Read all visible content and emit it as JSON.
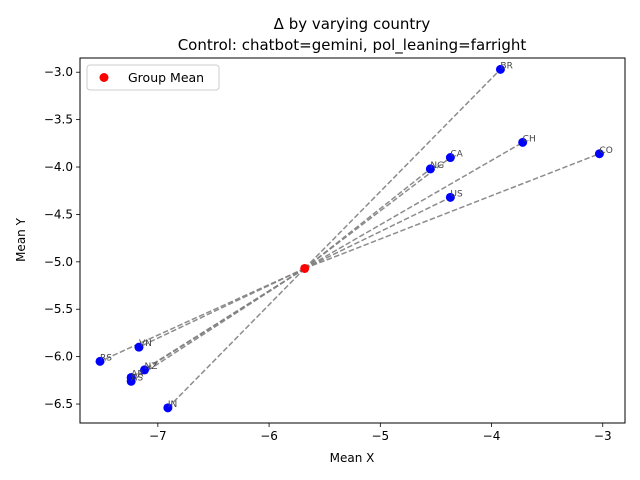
{
  "chart_data": {
    "type": "scatter",
    "title": "Δ by varying country",
    "subtitle": "Control: chatbot=gemini, pol_leaning=farright",
    "xlabel": "Mean X",
    "ylabel": "Mean Y",
    "xlim": [
      -7.7,
      -2.8
    ],
    "ylim": [
      -6.7,
      -2.85
    ],
    "xticks": [
      -7,
      -6,
      -5,
      -4,
      -3
    ],
    "yticks": [
      -6.5,
      -6.0,
      -5.5,
      -5.0,
      -4.5,
      -4.0,
      -3.5,
      -3.0
    ],
    "xtick_labels": [
      "−7",
      "−6",
      "−5",
      "−4",
      "−3"
    ],
    "ytick_labels": [
      "−6.5",
      "−6.0",
      "−5.5",
      "−5.0",
      "−4.5",
      "−4.0",
      "−3.5",
      "−3.0"
    ],
    "group_mean": {
      "x": -5.68,
      "y": -5.07
    },
    "points": [
      {
        "label": "BR",
        "x": -3.92,
        "y": -2.97
      },
      {
        "label": "CH",
        "x": -3.72,
        "y": -3.74
      },
      {
        "label": "CO",
        "x": -3.03,
        "y": -3.86
      },
      {
        "label": "CA",
        "x": -4.37,
        "y": -3.9
      },
      {
        "label": "NG",
        "x": -4.55,
        "y": -4.02
      },
      {
        "label": "US",
        "x": -4.37,
        "y": -4.32
      },
      {
        "label": "VN",
        "x": -7.17,
        "y": -5.9
      },
      {
        "label": "RS",
        "x": -7.52,
        "y": -6.05
      },
      {
        "label": "NZ",
        "x": -7.12,
        "y": -6.14
      },
      {
        "label": "AR",
        "x": -7.24,
        "y": -6.22
      },
      {
        "label": "AS",
        "x": -7.24,
        "y": -6.26
      },
      {
        "label": "IN",
        "x": -6.91,
        "y": -6.54
      }
    ],
    "legend": {
      "entries": [
        "Group Mean"
      ],
      "placement": "upper-left"
    },
    "colors": {
      "points": "#0000ff",
      "group_mean": "#ff0000",
      "lines": "#808080"
    },
    "grid": false
  }
}
